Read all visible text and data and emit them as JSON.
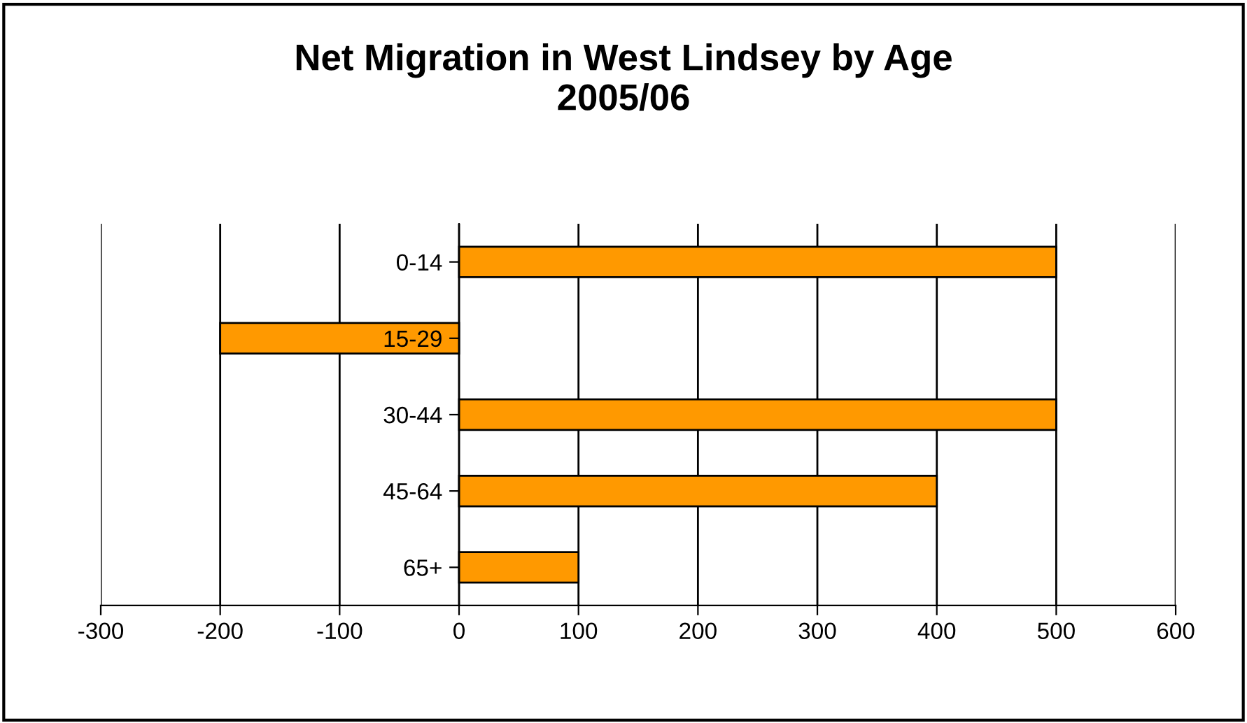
{
  "chart_data": {
    "type": "bar",
    "title": "Net Migration in West Lindsey by Age\n2005/06",
    "orientation": "horizontal",
    "categories": [
      "0-14",
      "15-29",
      "30-44",
      "45-64",
      "65+"
    ],
    "series": [
      {
        "color": "#ff9900",
        "values": [
          500,
          -200,
          500,
          400,
          100
        ]
      }
    ],
    "xlim": [
      -300,
      600
    ],
    "xticks": [
      -300,
      -200,
      -100,
      0,
      100,
      200,
      300,
      400,
      500,
      600
    ],
    "grid": "x",
    "legend": false
  }
}
